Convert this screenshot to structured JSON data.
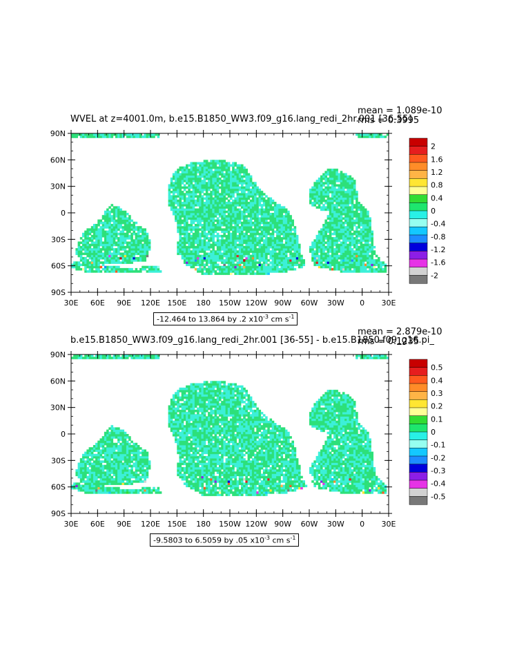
{
  "panels": [
    {
      "title": "WVEL at z=4001.0m, b.e15.B1850_WW3.f09_g16.lang_redi_2hr.001 [36-55]",
      "mean_label": "mean = 1.089e-10",
      "rms_label": "rms = 0.3995",
      "range_label": "-12.464 to 13.864 by .2 x10",
      "range_exp": "-3",
      "range_units": "cm s",
      "range_units_exp": "-1",
      "colorbar_labels": [
        "2",
        "1.6",
        "1.2",
        "0.8",
        "0.4",
        "0",
        "-0.4",
        "-0.8",
        "-1.2",
        "-1.6",
        "-2"
      ]
    },
    {
      "title": "b.e15.B1850_WW3.f09_g16.lang_redi_2hr.001 [36-55] - b.e15.B1850.f09_g16.pi_",
      "mean_label": "mean = 2.879e-10",
      "rms_label": "rms = 0.1235",
      "range_label": "-9.5803 to 6.5059 by .05 x10",
      "range_exp": "-3",
      "range_units": "cm s",
      "range_units_exp": "-1",
      "colorbar_labels": [
        "0.5",
        "0.4",
        "0.3",
        "0.2",
        "0.1",
        "0",
        "-0.1",
        "-0.2",
        "-0.3",
        "-0.4",
        "-0.5"
      ]
    }
  ],
  "map": {
    "lat_labels": [
      "90N",
      "60N",
      "30N",
      "0",
      "30S",
      "60S",
      "90S"
    ],
    "lon_labels": [
      "30E",
      "60E",
      "90E",
      "120E",
      "150E",
      "180",
      "150W",
      "120W",
      "90W",
      "60W",
      "30W",
      "0",
      "30E"
    ]
  },
  "colors": {
    "scale": [
      "#c80000",
      "#e61e1e",
      "#ff5a1e",
      "#ff8c28",
      "#ffb446",
      "#ffe632",
      "#ffff96",
      "#32dc32",
      "#1ee66e",
      "#28f0e6",
      "#96fff0",
      "#14c8ff",
      "#1e8cff",
      "#0000dc",
      "#8c1ee6",
      "#e632e6",
      "#d2d2d2",
      "#787878"
    ],
    "ocean_main": "#2de07a",
    "ocean_alt": "#3cf0d8"
  }
}
